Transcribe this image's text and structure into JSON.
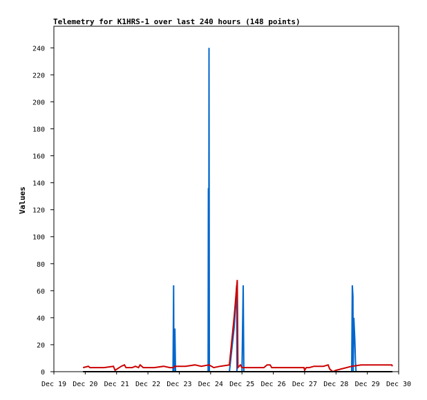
{
  "chart_data": {
    "type": "line",
    "title": "Telemetry for K1HRS-1 over last 240 hours (148 points)",
    "xlabel": "",
    "ylabel": "Values",
    "x_domain": [
      19,
      30
    ],
    "ylim": [
      0,
      256
    ],
    "grid": false,
    "legend": "none",
    "x_ticks": [
      {
        "value": 19,
        "label": "Dec 19"
      },
      {
        "value": 20,
        "label": "Dec 20"
      },
      {
        "value": 21,
        "label": "Dec 21"
      },
      {
        "value": 22,
        "label": "Dec 22"
      },
      {
        "value": 23,
        "label": "Dec 23"
      },
      {
        "value": 24,
        "label": "Dec 24"
      },
      {
        "value": 25,
        "label": "Dec 25"
      },
      {
        "value": 26,
        "label": "Dec 26"
      },
      {
        "value": 27,
        "label": "Dec 27"
      },
      {
        "value": 28,
        "label": "Dec 28"
      },
      {
        "value": 29,
        "label": "Dec 29"
      },
      {
        "value": 30,
        "label": "Dec 30"
      }
    ],
    "y_ticks": [
      0,
      20,
      40,
      60,
      80,
      100,
      120,
      140,
      160,
      180,
      200,
      220,
      240
    ],
    "series": [
      {
        "color": "#0066cc",
        "points": [
          [
            19.93,
            0
          ],
          [
            22.8,
            0
          ],
          [
            22.82,
            64
          ],
          [
            22.83,
            0
          ],
          [
            22.86,
            32
          ],
          [
            22.88,
            0
          ],
          [
            23.92,
            0
          ],
          [
            23.93,
            136
          ],
          [
            23.94,
            0
          ],
          [
            23.95,
            240
          ],
          [
            23.96,
            0
          ],
          [
            24.6,
            0
          ],
          [
            24.75,
            32
          ],
          [
            24.83,
            64
          ],
          [
            24.84,
            0
          ],
          [
            25.0,
            0
          ],
          [
            25.04,
            64
          ],
          [
            25.06,
            0
          ],
          [
            28.5,
            0
          ],
          [
            28.52,
            64
          ],
          [
            28.54,
            56
          ],
          [
            28.55,
            0
          ],
          [
            28.57,
            40
          ],
          [
            28.6,
            24
          ],
          [
            28.62,
            8
          ],
          [
            28.64,
            0
          ],
          [
            29.8,
            0
          ]
        ]
      },
      {
        "color": "#cc0000",
        "points": [
          [
            19.93,
            3
          ],
          [
            20.1,
            4
          ],
          [
            20.15,
            3
          ],
          [
            20.3,
            3
          ],
          [
            20.6,
            3
          ],
          [
            20.9,
            4
          ],
          [
            20.95,
            1
          ],
          [
            21.15,
            4
          ],
          [
            21.25,
            5
          ],
          [
            21.3,
            3
          ],
          [
            21.5,
            3
          ],
          [
            21.6,
            4
          ],
          [
            21.7,
            3
          ],
          [
            21.75,
            5
          ],
          [
            21.85,
            3
          ],
          [
            22.2,
            3
          ],
          [
            22.5,
            4
          ],
          [
            22.7,
            3
          ],
          [
            22.82,
            3
          ],
          [
            22.85,
            4
          ],
          [
            23.2,
            4
          ],
          [
            23.5,
            5
          ],
          [
            23.7,
            4
          ],
          [
            23.95,
            5
          ],
          [
            24.1,
            3
          ],
          [
            24.3,
            4
          ],
          [
            24.6,
            5
          ],
          [
            24.75,
            40
          ],
          [
            24.85,
            68
          ],
          [
            24.87,
            3
          ],
          [
            24.95,
            5
          ],
          [
            25.0,
            3
          ],
          [
            25.3,
            3
          ],
          [
            25.7,
            3
          ],
          [
            25.8,
            5
          ],
          [
            25.9,
            5
          ],
          [
            25.95,
            3
          ],
          [
            26.5,
            3
          ],
          [
            26.98,
            3
          ],
          [
            27.0,
            1
          ],
          [
            27.05,
            3
          ],
          [
            27.15,
            3
          ],
          [
            27.3,
            4
          ],
          [
            27.6,
            4
          ],
          [
            27.75,
            5
          ],
          [
            27.8,
            2
          ],
          [
            27.9,
            0
          ],
          [
            28.0,
            1
          ],
          [
            28.5,
            4
          ],
          [
            28.8,
            5
          ],
          [
            29.2,
            5
          ],
          [
            29.5,
            5
          ],
          [
            29.78,
            5
          ],
          [
            29.8,
            4
          ]
        ]
      },
      {
        "color": "#000000",
        "points": [
          [
            19.93,
            0
          ],
          [
            29.8,
            0
          ]
        ]
      }
    ]
  }
}
